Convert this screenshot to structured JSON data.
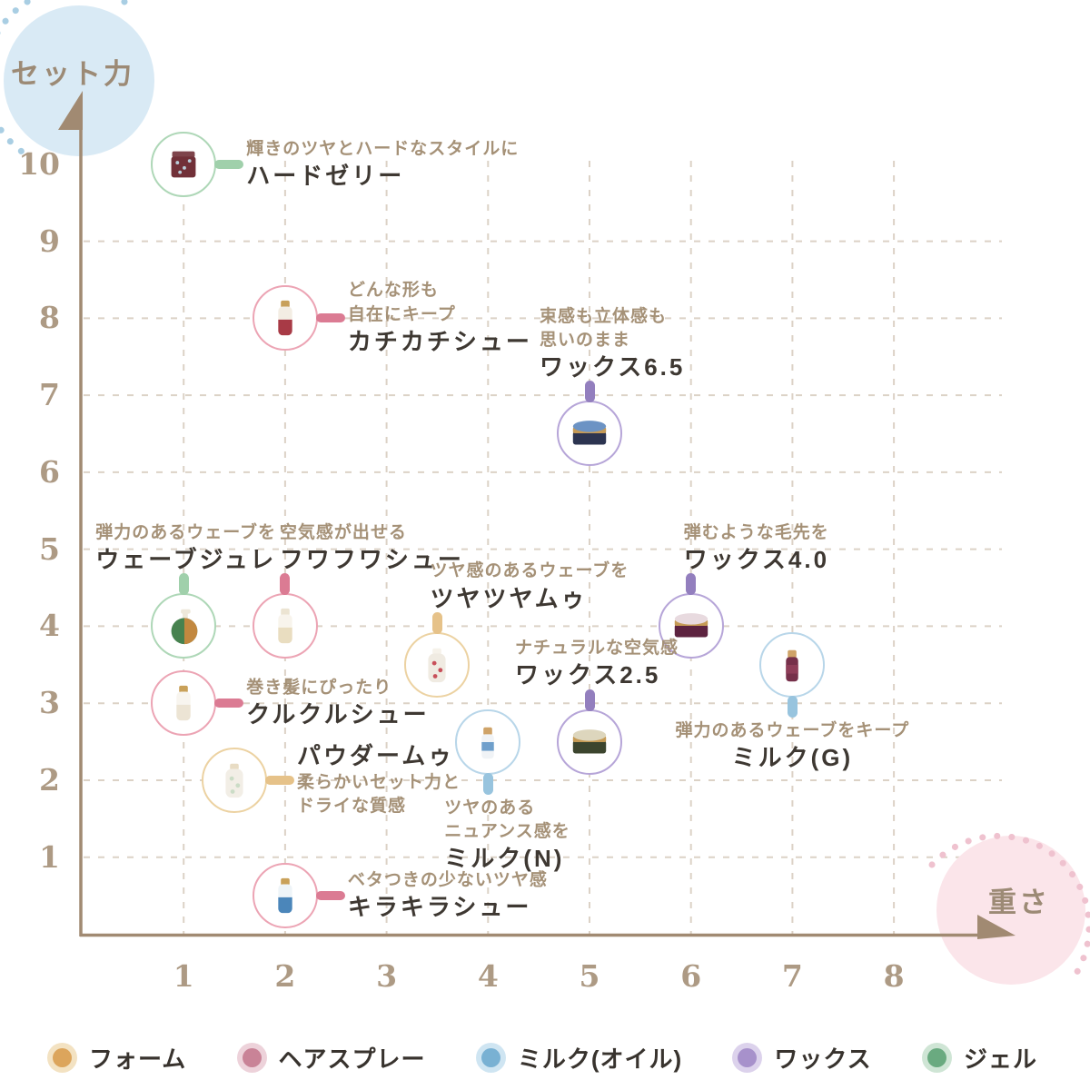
{
  "axes": {
    "y_label": "セット力",
    "x_label": "重さ",
    "x_ticks": [
      1,
      2,
      3,
      4,
      5,
      6,
      7,
      8
    ],
    "y_ticks": [
      1,
      2,
      3,
      4,
      5,
      6,
      7,
      8,
      9,
      10
    ],
    "axis_color": "#a18a72",
    "tick_color": "#ad9a84",
    "grid_color": "#dcd2c6",
    "y_badge_bg": "#d9eaf5",
    "y_badge_dots": "#a9cee3",
    "x_badge_bg": "#fbe5ea",
    "x_badge_dots": "#efc2cf",
    "badge_text_color": "#9c8a75"
  },
  "colors": {
    "text": {
      "desc": "#a59177",
      "name": "#3e3832"
    },
    "categories": {
      "foam": {
        "stroke": "#ecd2a2",
        "connector": "#e6c289",
        "dot": "#dca55c",
        "halo": "#f3e2c2"
      },
      "spray": {
        "stroke": "#eca4b4",
        "connector": "#db7b93",
        "dot": "#c98397",
        "halo": "#edd2da"
      },
      "milk": {
        "stroke": "#b8d6e9",
        "connector": "#98c4de",
        "dot": "#79b1d3",
        "halo": "#cfe5f2"
      },
      "wax": {
        "stroke": "#b6a5d8",
        "connector": "#937fbe",
        "dot": "#a791cb",
        "halo": "#dcd2ec"
      },
      "gel": {
        "stroke": "#aed7b7",
        "connector": "#a0d0ab",
        "dot": "#6aaa80",
        "halo": "#cfe5d5"
      }
    }
  },
  "legend": {
    "items": [
      {
        "key": "foam",
        "label": "フォーム"
      },
      {
        "key": "spray",
        "label": "ヘアスプレー"
      },
      {
        "key": "milk",
        "label": "ミルク(オイル)"
      },
      {
        "key": "wax",
        "label": "ワックス"
      },
      {
        "key": "gel",
        "label": "ジェル"
      }
    ]
  },
  "chart_data": {
    "type": "scatter",
    "title": "",
    "xlabel": "重さ",
    "ylabel": "セット力",
    "xlim": [
      0,
      8.5
    ],
    "ylim": [
      0,
      10.5
    ],
    "x_ticks": [
      1,
      2,
      3,
      4,
      5,
      6,
      7,
      8
    ],
    "y_ticks": [
      1,
      2,
      3,
      4,
      5,
      6,
      7,
      8,
      9,
      10
    ],
    "grid": true,
    "legend_position": "bottom",
    "points": [
      {
        "name": "ハードゼリー",
        "desc": [
          "輝きのツヤとハードなスタイルに"
        ],
        "x": 1,
        "y": 10,
        "category": "gel",
        "label": {
          "side": "right"
        },
        "glyph": {
          "type": "jar",
          "body": "#713038",
          "accent": "#b9cdd9",
          "cap": "#7e444b"
        }
      },
      {
        "name": "カチカチシュー",
        "desc": [
          "どんな形も",
          "自在にキープ"
        ],
        "x": 2,
        "y": 8,
        "category": "spray",
        "label": {
          "side": "right"
        },
        "glyph": {
          "type": "spray",
          "body": "#a83a46",
          "accent": "#f3ede3",
          "cap": "#c8a05a"
        }
      },
      {
        "name": "ワックス6.5",
        "desc": [
          "束感も立体感も",
          "思いのまま"
        ],
        "x": 5,
        "y": 6.5,
        "category": "wax",
        "label": {
          "side": "top",
          "dx": -55
        },
        "glyph": {
          "type": "tin",
          "body": "#2c3450",
          "accent": "#6c93c4",
          "cap": "#c59a55"
        }
      },
      {
        "name": "ウェーブジュレ",
        "desc": [
          "弾力のあるウェーブを"
        ],
        "x": 1,
        "y": 4,
        "category": "gel",
        "label": {
          "side": "top",
          "dx": -97
        },
        "glyph": {
          "type": "pump",
          "body": "#47824f",
          "accent": "#d88a3c",
          "cap": "#eee8da"
        }
      },
      {
        "name": "フワフワシュー",
        "desc": [
          "空気感が出せる"
        ],
        "x": 2,
        "y": 4,
        "category": "spray",
        "label": {
          "side": "top",
          "dx": -6
        },
        "glyph": {
          "type": "spray",
          "body": "#e9ddc0",
          "accent": "#f8f4ec",
          "cap": "#ece4d2"
        }
      },
      {
        "name": "ツヤツヤムゥ",
        "desc": [
          "ツヤ感のあるウェーブを"
        ],
        "x": 3.5,
        "y": 3.5,
        "category": "foam",
        "label": {
          "side": "top",
          "dx": -8
        },
        "glyph": {
          "type": "bottle",
          "body": "#f0ebe2",
          "accent": "#c8505a",
          "cap": "#f6f2ea"
        }
      },
      {
        "name": "クルクルシュー",
        "desc": [
          "巻き髪にぴったり"
        ],
        "x": 1,
        "y": 3,
        "category": "spray",
        "label": {
          "side": "right"
        },
        "glyph": {
          "type": "spray",
          "body": "#ece4d4",
          "accent": "#f8f5ef",
          "cap": "#c9a159"
        }
      },
      {
        "name": "パウダームゥ",
        "desc": [
          "柔らかいセット力と",
          "ドライな質感"
        ],
        "x": 1.5,
        "y": 2,
        "category": "foam",
        "label": {
          "side": "right",
          "name_first": true
        },
        "glyph": {
          "type": "bottle",
          "body": "#f2eee6",
          "accent": "#cbdcc6",
          "cap": "#e8dcc4"
        }
      },
      {
        "name": "ワックス4.0",
        "desc": [
          "弾むような毛先を"
        ],
        "x": 6,
        "y": 4,
        "category": "wax",
        "label": {
          "side": "top",
          "dx": -8
        },
        "glyph": {
          "type": "tin",
          "body": "#5d2340",
          "accent": "#e8dadf",
          "cap": "#c59a55"
        }
      },
      {
        "name": "ミルク(G)",
        "desc": [
          "弾力のあるウェーブをキープ"
        ],
        "x": 7,
        "y": 3.5,
        "category": "milk",
        "label": {
          "side": "bottom",
          "align": "center"
        },
        "glyph": {
          "type": "tube",
          "body": "#76304a",
          "accent": "#8e3d58",
          "cap": "#cfa368"
        }
      },
      {
        "name": "ミルク(N)",
        "desc": [
          "ツヤのある",
          "ニュアンス感を"
        ],
        "x": 4,
        "y": 2.5,
        "category": "milk",
        "label": {
          "side": "bottom",
          "dx": -48
        },
        "glyph": {
          "type": "tube",
          "body": "#f0f3f6",
          "accent": "#6f9fcb",
          "cap": "#cfa368"
        }
      },
      {
        "name": "ワックス2.5",
        "desc": [
          "ナチュラルな空気感"
        ],
        "x": 5,
        "y": 2.5,
        "category": "wax",
        "label": {
          "side": "top",
          "dx": -82
        },
        "glyph": {
          "type": "tin",
          "body": "#3c452e",
          "accent": "#ddd6bd",
          "cap": "#c59a55"
        }
      },
      {
        "name": "キラキラシュー",
        "desc": [
          "ベタつきの少ないツヤ感"
        ],
        "x": 2,
        "y": 0.5,
        "category": "spray",
        "label": {
          "side": "right"
        },
        "glyph": {
          "type": "spray",
          "body": "#4b86ba",
          "accent": "#eef4f8",
          "cap": "#c9a159"
        }
      }
    ]
  }
}
